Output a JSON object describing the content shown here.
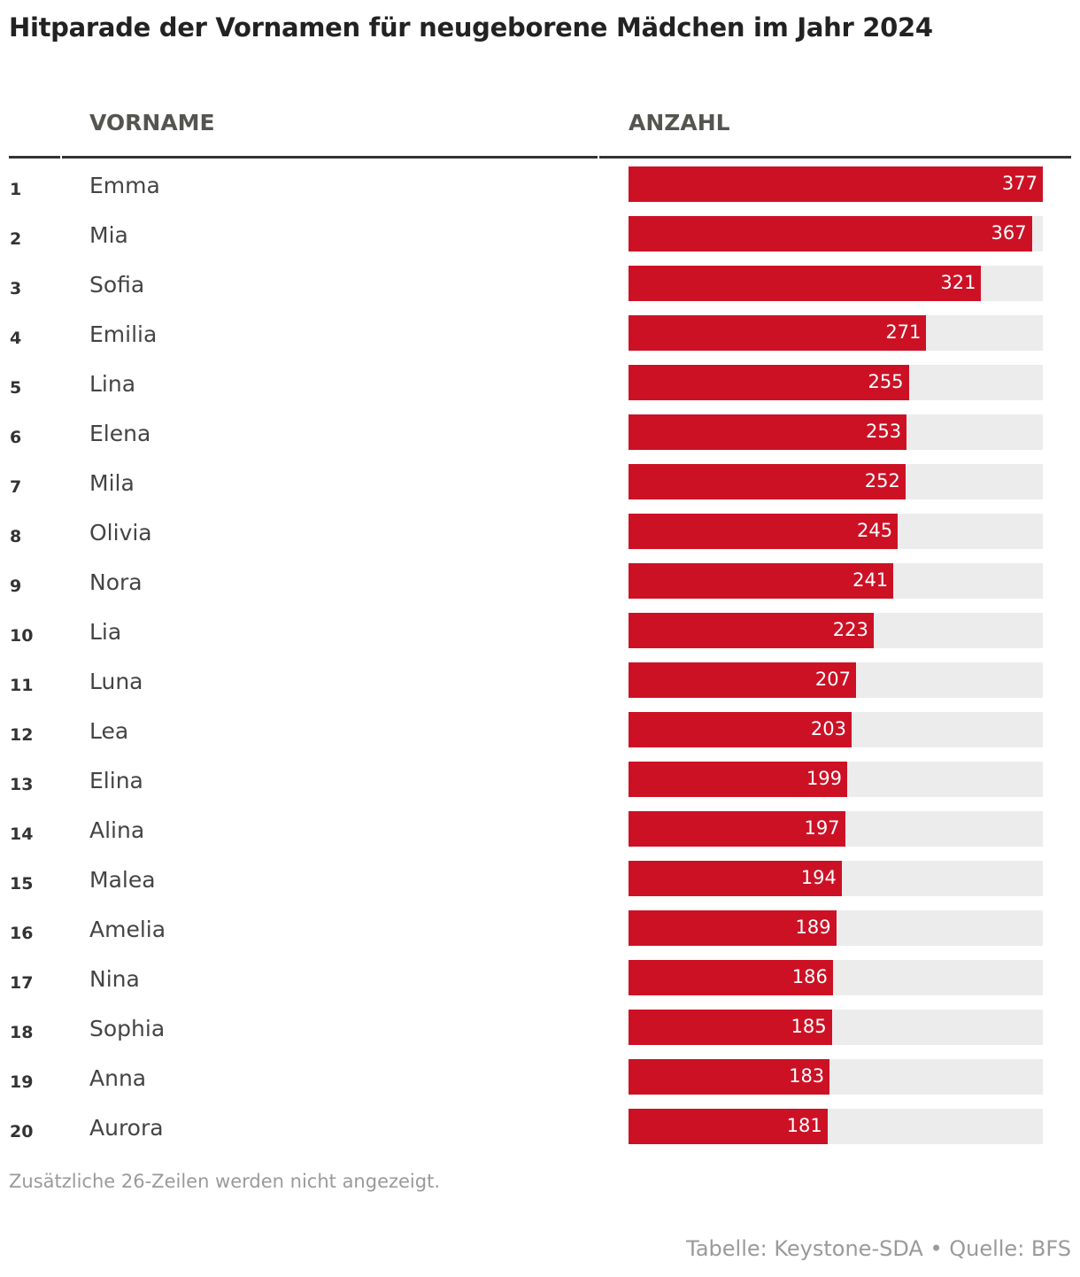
{
  "title": "Hitparade der Vornamen für neugeborene Mädchen im Jahr 2024",
  "header": {
    "name": "VORNAME",
    "count": "ANZAHL"
  },
  "colors": {
    "bar": "#cc1125",
    "track": "#ececec"
  },
  "chart_data": {
    "type": "table",
    "title": "Hitparade der Vornamen für neugeborene Mädchen im Jahr 2024",
    "columns": [
      "VORNAME",
      "ANZAHL"
    ],
    "max": 377,
    "rows": [
      {
        "rank": "1",
        "name": "Emma",
        "value": 377
      },
      {
        "rank": "2",
        "name": "Mia",
        "value": 367
      },
      {
        "rank": "3",
        "name": "Sofia",
        "value": 321
      },
      {
        "rank": "4",
        "name": "Emilia",
        "value": 271
      },
      {
        "rank": "5",
        "name": "Lina",
        "value": 255
      },
      {
        "rank": "6",
        "name": "Elena",
        "value": 253
      },
      {
        "rank": "7",
        "name": "Mila",
        "value": 252
      },
      {
        "rank": "8",
        "name": "Olivia",
        "value": 245
      },
      {
        "rank": "9",
        "name": "Nora",
        "value": 241
      },
      {
        "rank": "10",
        "name": "Lia",
        "value": 223
      },
      {
        "rank": "11",
        "name": "Luna",
        "value": 207
      },
      {
        "rank": "12",
        "name": "Lea",
        "value": 203
      },
      {
        "rank": "13",
        "name": "Elina",
        "value": 199
      },
      {
        "rank": "14",
        "name": "Alina",
        "value": 197
      },
      {
        "rank": "15",
        "name": "Malea",
        "value": 194
      },
      {
        "rank": "16",
        "name": "Amelia",
        "value": 189
      },
      {
        "rank": "17",
        "name": "Nina",
        "value": 186
      },
      {
        "rank": "18",
        "name": "Sophia",
        "value": 185
      },
      {
        "rank": "19",
        "name": "Anna",
        "value": 183
      },
      {
        "rank": "20",
        "name": "Aurora",
        "value": 181
      }
    ]
  },
  "note": "Zusätzliche 26-Zeilen werden nicht angezeigt.",
  "source": "Tabelle: Keystone-SDA • Quelle: BFS"
}
